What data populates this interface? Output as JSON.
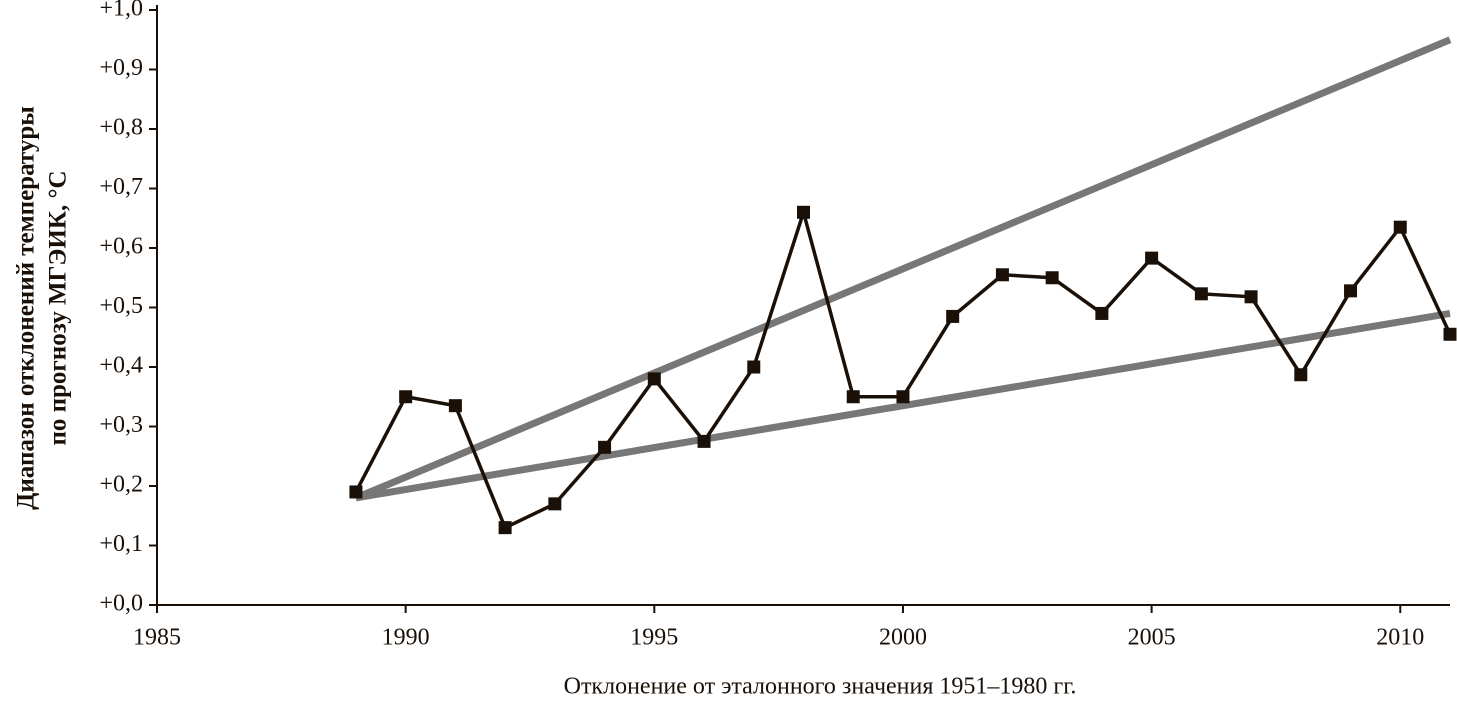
{
  "chart_data": {
    "type": "line",
    "ylabel": [
      "Диапазон отклонений температуры",
      "по прогнозу МГЭИК, °С"
    ],
    "xlabel": "Отклонение от эталонного значения 1951–1980 гг.",
    "xlim": [
      1985,
      2011
    ],
    "ylim": [
      0,
      1
    ],
    "xticks": [
      1985,
      1990,
      1995,
      2000,
      2005,
      2010
    ],
    "yticks": [
      {
        "value": 0,
        "label": "+0,0"
      },
      {
        "value": 0.1,
        "label": "+0,1"
      },
      {
        "value": 0.2,
        "label": "+0,2"
      },
      {
        "value": 0.3,
        "label": "+0,3"
      },
      {
        "value": 0.4,
        "label": "+0,4"
      },
      {
        "value": 0.5,
        "label": "+0,5"
      },
      {
        "value": 0.6,
        "label": "+0,6"
      },
      {
        "value": 0.7,
        "label": "+0,7"
      },
      {
        "value": 0.8,
        "label": "+0,8"
      },
      {
        "value": 0.9,
        "label": "+0,9"
      },
      {
        "value": 1,
        "label": "+1,0"
      }
    ],
    "series": [
      {
        "color": "#777777",
        "x": [
          1989,
          2011
        ],
        "values": [
          0.18,
          0.95
        ]
      },
      {
        "color": "#777777",
        "x": [
          1989,
          2011
        ],
        "values": [
          0.18,
          0.49
        ]
      },
      {
        "color": "#1a1008",
        "markers": true,
        "x": [
          1989,
          1990,
          1991,
          1992,
          1993,
          1994,
          1995,
          1996,
          1997,
          1998,
          1999,
          2000,
          2001,
          2002,
          2003,
          2004,
          2005,
          2006,
          2007,
          2008,
          2009,
          2010,
          2011
        ],
        "values": [
          0.19,
          0.35,
          0.335,
          0.13,
          0.17,
          0.265,
          0.38,
          0.275,
          0.4,
          0.66,
          0.35,
          0.35,
          0.485,
          0.555,
          0.55,
          0.49,
          0.583,
          0.523,
          0.518,
          0.387,
          0.528,
          0.635,
          0.455
        ]
      }
    ]
  }
}
